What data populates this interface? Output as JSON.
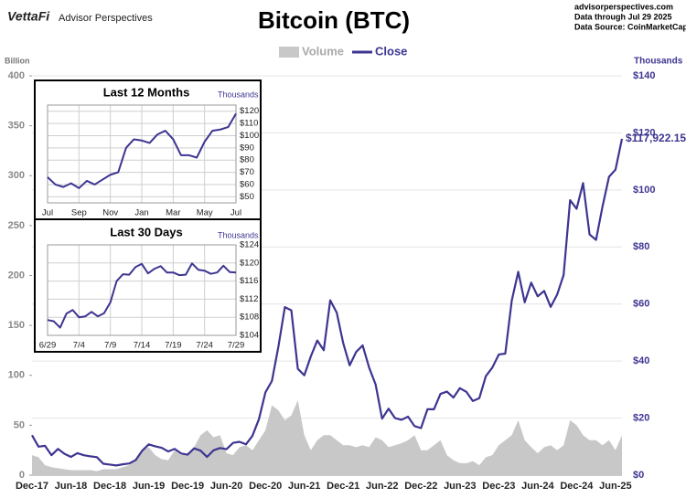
{
  "header": {
    "brand": "VettaFi",
    "subbrand": "Advisor Perspectives",
    "source_lines": [
      "advisorperspectives.com",
      "Data through  Jul 29 2025",
      "Data Source: CoinMarketCap"
    ]
  },
  "chart_data": [
    {
      "type": "line",
      "title": "Bitcoin (BTC)",
      "ylabel": "Billion",
      "y2label": "Thousands",
      "legend": "top",
      "grid": true,
      "categories": [
        "Dec-17",
        null,
        null,
        null,
        null,
        null,
        "Jun-18",
        null,
        null,
        null,
        null,
        null,
        "Dec-18",
        null,
        null,
        null,
        null,
        null,
        "Jun-19",
        null,
        null,
        null,
        null,
        null,
        "Dec-19",
        null,
        null,
        null,
        null,
        null,
        "Jun-20",
        null,
        null,
        null,
        null,
        null,
        "Dec-20",
        null,
        null,
        null,
        null,
        null,
        "Jun-21",
        null,
        null,
        null,
        null,
        null,
        "Dec-21",
        null,
        null,
        null,
        null,
        null,
        "Jun-22",
        null,
        null,
        null,
        null,
        null,
        "Dec-22",
        null,
        null,
        null,
        null,
        null,
        "Jun-23",
        null,
        null,
        null,
        null,
        null,
        "Dec-23",
        null,
        null,
        null,
        null,
        null,
        "Jun-24",
        null,
        null,
        null,
        null,
        null,
        "Dec-24",
        null,
        null,
        null,
        null,
        null,
        "Jun-25",
        null
      ],
      "ylim": [
        0,
        400
      ],
      "yticks": [
        0,
        50,
        100,
        150,
        200,
        250,
        300,
        350,
        400
      ],
      "y2lim": [
        0,
        140
      ],
      "y2ticks": [
        {
          "value": 0,
          "label": "$0"
        },
        {
          "value": 20,
          "label": "$20"
        },
        {
          "value": 40,
          "label": "$40"
        },
        {
          "value": 60,
          "label": "$60"
        },
        {
          "value": 80,
          "label": "$80"
        },
        {
          "value": 100,
          "label": "$100"
        },
        {
          "value": 120,
          "label": "$120"
        },
        {
          "value": 140,
          "label": "$140"
        }
      ],
      "series": [
        {
          "name": "Volume",
          "type": "area",
          "axis": "y",
          "color": "#c8c8c8",
          "values": [
            20,
            18,
            10,
            8,
            7,
            6,
            5,
            5,
            5,
            5,
            4,
            6,
            6,
            6,
            8,
            10,
            17,
            25,
            28,
            20,
            16,
            15,
            25,
            20,
            22,
            28,
            40,
            45,
            38,
            40,
            22,
            20,
            28,
            30,
            25,
            35,
            45,
            70,
            65,
            55,
            60,
            75,
            40,
            25,
            35,
            40,
            40,
            35,
            30,
            30,
            28,
            30,
            28,
            38,
            35,
            28,
            30,
            32,
            35,
            40,
            25,
            25,
            30,
            35,
            20,
            15,
            12,
            12,
            14,
            10,
            18,
            20,
            30,
            35,
            40,
            55,
            35,
            28,
            22,
            28,
            30,
            25,
            30,
            55,
            50,
            40,
            35,
            35,
            30,
            35,
            25,
            40
          ]
        },
        {
          "name": "Close",
          "type": "line",
          "axis": "y2",
          "color": "#3d3591",
          "values": [
            14,
            10,
            10.3,
            7,
            9.2,
            7.5,
            6.4,
            7.7,
            7,
            6.6,
            6.3,
            4,
            3.7,
            3.4,
            3.8,
            4.1,
            5.3,
            8.6,
            10.8,
            10.1,
            9.6,
            8.3,
            9.2,
            7.6,
            7.2,
            9.4,
            8.6,
            6.4,
            8.7,
            9.5,
            9.1,
            11.3,
            11.7,
            10.8,
            13.8,
            19.6,
            29,
            33,
            45,
            58.9,
            57.8,
            37.3,
            35,
            41.6,
            47.2,
            43.8,
            61.3,
            57,
            46.3,
            38.5,
            43.2,
            45.5,
            37.7,
            31.8,
            19.8,
            23.3,
            20,
            19.4,
            20.5,
            17.2,
            16.5,
            23.1,
            23.1,
            28.5,
            29.3,
            27.2,
            30.5,
            29.2,
            26,
            27,
            34.7,
            37.7,
            42.3,
            42.6,
            61.2,
            71.3,
            60.6,
            67.5,
            62.7,
            64.6,
            59,
            63.3,
            70.2,
            96.4,
            93.4,
            102.4,
            84.4,
            82.5,
            94.2,
            104.6,
            107.1,
            117.92215
          ],
          "value_labels": [
            null,
            null,
            null,
            null,
            null,
            null,
            null,
            null,
            null,
            null,
            null,
            null,
            null,
            null,
            null,
            null,
            null,
            null,
            null,
            null,
            null,
            null,
            null,
            null,
            null,
            null,
            null,
            null,
            null,
            null,
            null,
            null,
            null,
            null,
            null,
            null,
            null,
            null,
            null,
            null,
            null,
            null,
            null,
            null,
            null,
            null,
            null,
            null,
            null,
            null,
            null,
            null,
            null,
            null,
            null,
            null,
            null,
            null,
            null,
            null,
            null,
            null,
            null,
            null,
            null,
            null,
            null,
            null,
            null,
            null,
            null,
            null,
            null,
            null,
            null,
            null,
            null,
            null,
            null,
            null,
            null,
            null,
            null,
            null,
            null,
            null,
            null,
            null,
            null,
            null,
            null,
            "$117,922.15"
          ]
        }
      ]
    },
    {
      "type": "line",
      "title": "Last 12 Months",
      "y2label": "Thousands",
      "grid": true,
      "xgrid": true,
      "categories": [
        "Jul",
        null,
        null,
        null,
        "Sep",
        null,
        null,
        null,
        "Nov",
        null,
        null,
        null,
        "Jan",
        null,
        null,
        null,
        "Mar",
        null,
        null,
        null,
        "May",
        null,
        null,
        null,
        "Jul"
      ],
      "y2lim": [
        45,
        125
      ],
      "y2ticks": [
        {
          "value": 50,
          "label": "$50"
        },
        {
          "value": 60,
          "label": "$60"
        },
        {
          "value": 70,
          "label": "$70"
        },
        {
          "value": 80,
          "label": "$80"
        },
        {
          "value": 90,
          "label": "$90"
        },
        {
          "value": 100,
          "label": "$100"
        },
        {
          "value": 110,
          "label": "$110"
        },
        {
          "value": 120,
          "label": "$120"
        }
      ],
      "series": [
        {
          "name": "Close",
          "type": "line",
          "axis": "y2",
          "color": "#3d3591",
          "values": [
            66,
            60,
            58,
            61,
            57,
            63,
            60,
            64,
            68,
            70,
            90,
            97,
            96,
            94,
            101,
            104,
            97,
            84,
            84,
            82,
            95,
            104,
            105,
            107,
            118
          ]
        }
      ]
    },
    {
      "type": "line",
      "title": "Last 30 Days",
      "y2label": "Thousands",
      "grid": true,
      "xgrid": true,
      "categories": [
        "6/29",
        null,
        null,
        null,
        null,
        "7/4",
        null,
        null,
        null,
        null,
        "7/9",
        null,
        null,
        null,
        null,
        "7/14",
        null,
        null,
        null,
        null,
        "7/19",
        null,
        null,
        null,
        null,
        "7/24",
        null,
        null,
        null,
        null,
        "7/29"
      ],
      "y2lim": [
        104,
        124
      ],
      "y2ticks": [
        {
          "value": 104,
          "label": "$104"
        },
        {
          "value": 108,
          "label": "$108"
        },
        {
          "value": 112,
          "label": "$112"
        },
        {
          "value": 116,
          "label": "$116"
        },
        {
          "value": 120,
          "label": "$120"
        },
        {
          "value": 124,
          "label": "$124"
        }
      ],
      "series": [
        {
          "name": "Close",
          "type": "line",
          "axis": "y2",
          "color": "#3d3591",
          "values": [
            107.4,
            107.1,
            105.7,
            108.8,
            109.6,
            108,
            108.2,
            109.2,
            108.2,
            108.9,
            111.3,
            116,
            117.5,
            117.4,
            119.1,
            119.8,
            117.7,
            118.7,
            119.3,
            117.9,
            117.9,
            117.3,
            117.4,
            119.9,
            118.5,
            118.3,
            117.6,
            117.9,
            119.4,
            118,
            117.9
          ]
        }
      ]
    }
  ]
}
